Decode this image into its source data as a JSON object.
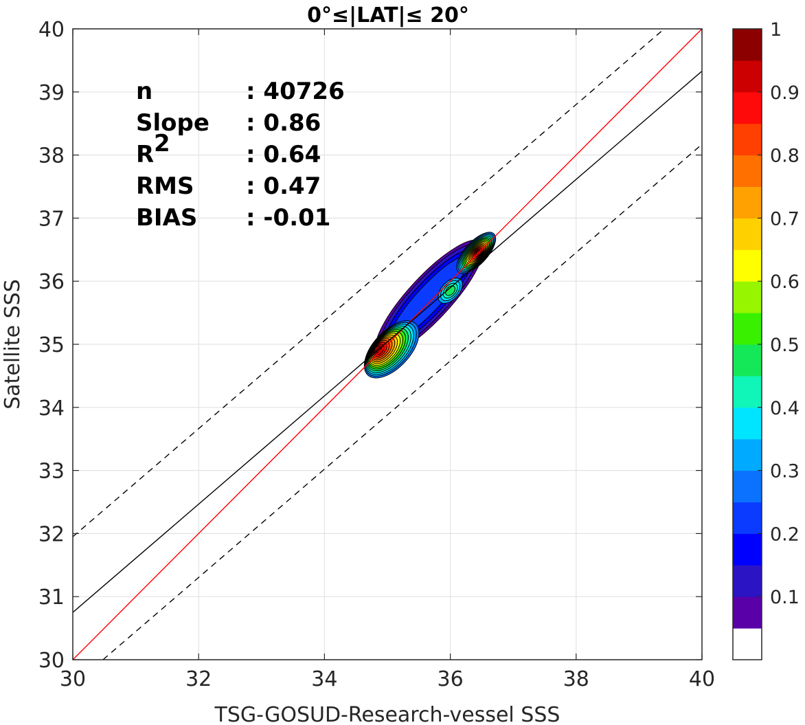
{
  "chart_data": {
    "type": "contour",
    "title": "0°≤|LAT|≤ 20°",
    "xlabel": "TSG-GOSUD-Research-vessel SSS",
    "ylabel": "Satellite SSS",
    "xlim": [
      30,
      40
    ],
    "ylim": [
      30,
      40
    ],
    "xticks": [
      "30",
      "32",
      "34",
      "36",
      "38",
      "40"
    ],
    "yticks": [
      "30",
      "31",
      "32",
      "33",
      "34",
      "35",
      "36",
      "37",
      "38",
      "39",
      "40"
    ],
    "grid": true,
    "stats": [
      {
        "label": "n",
        "value": ": 40726"
      },
      {
        "label": "Slope",
        "value": ": 0.86"
      },
      {
        "label": "R",
        "sup": "2",
        "value": ": 0.64"
      },
      {
        "label": "RMS",
        "value": ": 0.47"
      },
      {
        "label": "BIAS",
        "value": ": -0.01"
      }
    ],
    "lines": {
      "one_to_one": {
        "color": "#ff0000",
        "x": [
          30,
          40
        ],
        "y": [
          30,
          40
        ]
      },
      "fit": {
        "color": "#000000",
        "style": "solid",
        "x": [
          30,
          40
        ],
        "y": [
          30.75,
          39.33
        ]
      },
      "upper_bound": {
        "color": "#000000",
        "style": "dashed",
        "x": [
          30,
          39.4
        ],
        "y": [
          31.95,
          40
        ]
      },
      "lower_bound": {
        "color": "#000000",
        "style": "dashed",
        "x": [
          30.48,
          40
        ],
        "y": [
          30,
          38.17
        ]
      }
    },
    "density_peaks": [
      {
        "x": 34.85,
        "y": 34.92,
        "value": 1.0
      },
      {
        "x": 36.45,
        "y": 36.45,
        "value": 0.97
      },
      {
        "x": 36.0,
        "y": 35.85,
        "value": 0.38
      }
    ],
    "colorbar": {
      "range": [
        0,
        1
      ],
      "ticks": [
        "0.1",
        "0.2",
        "0.3",
        "0.4",
        "0.5",
        "0.6",
        "0.7",
        "0.8",
        "0.9",
        "1"
      ],
      "colors": [
        "#ffffff",
        "#5a00a8",
        "#2a14c4",
        "#0000ff",
        "#0a3bff",
        "#0b72ff",
        "#00aaff",
        "#00e5ff",
        "#10f5b8",
        "#15e858",
        "#38f000",
        "#98f500",
        "#ffff00",
        "#ffd000",
        "#ffa100",
        "#ff7000",
        "#ff4000",
        "#ff0a0a",
        "#cc0000",
        "#8c0000"
      ]
    }
  }
}
